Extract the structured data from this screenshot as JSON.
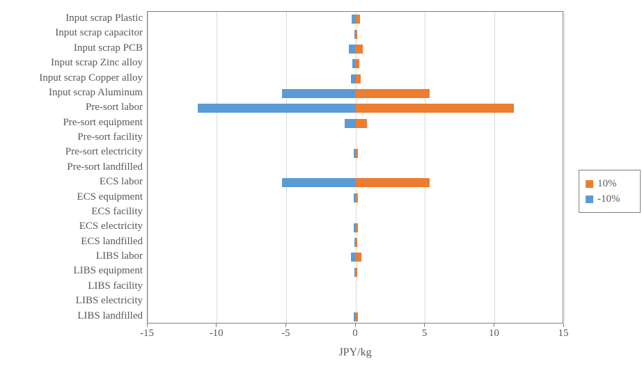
{
  "chart_data": {
    "type": "bar",
    "orientation": "horizontal",
    "title": "",
    "xlabel": "JPY/kg",
    "xlim": [
      -15,
      15
    ],
    "xticks": [
      -15,
      -10,
      -5,
      0,
      5,
      10,
      15
    ],
    "grid": true,
    "legend_position": "right",
    "categories": [
      "Input scrap Plastic",
      "Input scrap capacitor",
      "Input scrap PCB",
      "Input scrap Zinc alloy",
      "Input scrap Copper alloy",
      "Input scrap Aluminum",
      "Pre-sort labor",
      "Pre-sort equipment",
      "Pre-sort facility",
      "Pre-sort electricity",
      "Pre-sort landfilled",
      "ECS labor",
      "ECS equipment",
      "ECS facility",
      "ECS electricity",
      "ECS landfilled",
      "LIBS labor",
      "LIBS equipment",
      "LIBS facility",
      "LIBS electricity",
      "LIBS landfilled"
    ],
    "series": [
      {
        "name": "10%",
        "color": "#ED7D31",
        "values": [
          0.3,
          0.12,
          0.5,
          0.25,
          0.35,
          5.3,
          11.4,
          0.8,
          0,
          0.15,
          0,
          5.3,
          0.15,
          0,
          0.15,
          0.1,
          0.4,
          0.08,
          0,
          0,
          0.15
        ]
      },
      {
        "name": "-10%",
        "color": "#5B9BD5",
        "values": [
          -0.3,
          -0.12,
          -0.5,
          -0.25,
          -0.35,
          -5.3,
          -11.4,
          -0.8,
          0,
          -0.15,
          0,
          -5.3,
          -0.15,
          0,
          -0.15,
          -0.1,
          -0.35,
          -0.08,
          0,
          0,
          -0.15
        ]
      }
    ]
  },
  "legend": {
    "items": [
      {
        "label": "10%",
        "color": "#ED7D31"
      },
      {
        "label": "-10%",
        "color": "#5B9BD5"
      }
    ]
  },
  "colors": {
    "positive_series": "#ED7D31",
    "negative_series": "#5B9BD5",
    "gridline": "#D9D9D9",
    "axis": "#808080",
    "text": "#595959",
    "background": "#FFFFFF"
  }
}
